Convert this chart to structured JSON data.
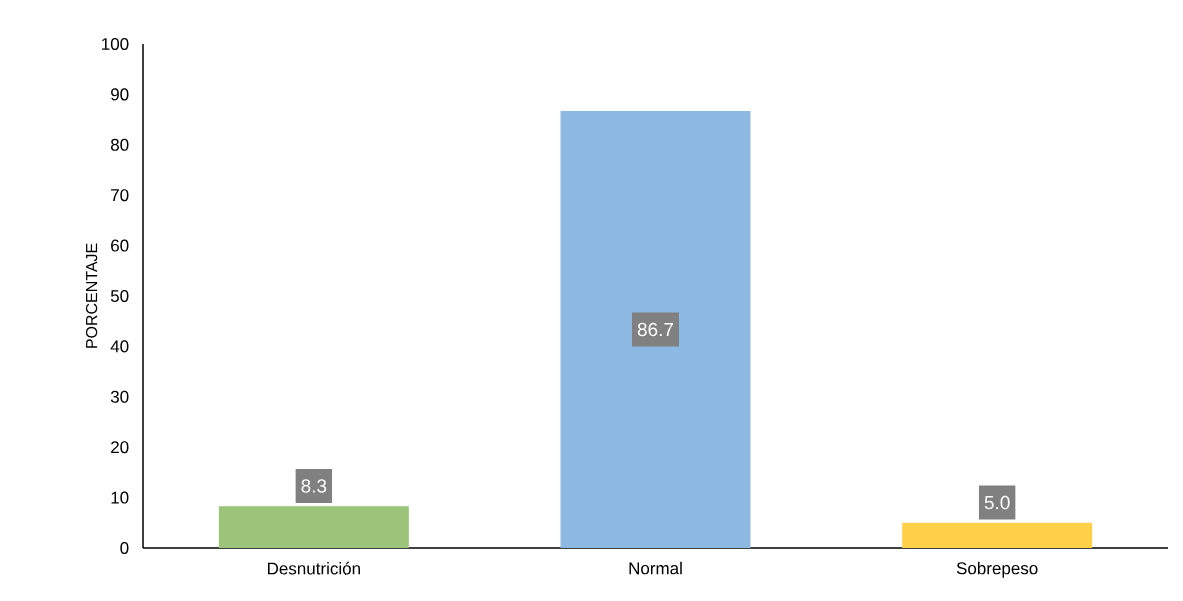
{
  "chart_data": {
    "type": "bar",
    "ylabel": "PORCENTAJE",
    "categories": [
      "Desnutrición",
      "Normal",
      "Sobrepeso"
    ],
    "values": [
      8.3,
      86.7,
      5.0
    ],
    "value_labels": [
      "8.3",
      "86.7",
      "5.0"
    ],
    "colors": [
      "#9bc47a",
      "#8db8e2",
      "#ffd04a"
    ],
    "ylim": [
      0,
      100
    ],
    "yticks": [
      0,
      10,
      20,
      30,
      40,
      50,
      60,
      70,
      80,
      90,
      100
    ]
  }
}
